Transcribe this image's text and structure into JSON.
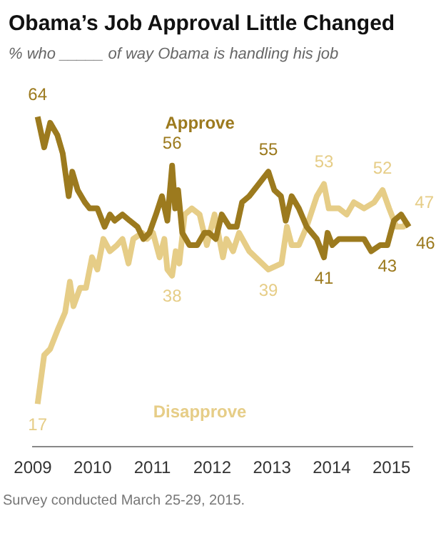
{
  "chart_data": {
    "type": "line",
    "title": "Obama’s Job Approval Little Changed",
    "subtitle": "% who _____ of way Obama is handling his job",
    "xlim": [
      2009,
      2015.35
    ],
    "xticks": [
      2009,
      2010,
      2011,
      2012,
      2013,
      2014,
      2015
    ],
    "tick_labels": "x",
    "grid": false,
    "legend": false,
    "marker": "none",
    "annotations": [
      "Survey conducted March 25-29, 2015."
    ],
    "series": [
      {
        "name": "Approve",
        "color": "#9c7a1e",
        "x": [
          2009.08,
          2009.19,
          2009.29,
          2009.41,
          2009.5,
          2009.6,
          2009.66,
          2009.75,
          2009.87,
          2009.95,
          2010.08,
          2010.2,
          2010.29,
          2010.37,
          2010.5,
          2010.62,
          2010.75,
          2010.85,
          2010.95,
          2011.06,
          2011.16,
          2011.25,
          2011.33,
          2011.38,
          2011.43,
          2011.5,
          2011.62,
          2011.75,
          2011.87,
          2011.95,
          2012.06,
          2012.16,
          2012.29,
          2012.41,
          2012.5,
          2012.62,
          2012.94,
          2013.04,
          2013.15,
          2013.23,
          2013.33,
          2013.45,
          2013.58,
          2013.75,
          2013.87,
          2013.93,
          2014.01,
          2014.12,
          2014.54,
          2014.66,
          2014.81,
          2014.93,
          2015.04,
          2015.16,
          2015.29
        ],
        "values": [
          64,
          59,
          63,
          61,
          58,
          51,
          55,
          52,
          50,
          49,
          49,
          46,
          48,
          47,
          48,
          47,
          46,
          44,
          45,
          48,
          51,
          47,
          56,
          49,
          52,
          45,
          43,
          43,
          45,
          45,
          44,
          48,
          46,
          46,
          50,
          51,
          55,
          52,
          51,
          47,
          51,
          49,
          46,
          44,
          41,
          45,
          43,
          44,
          44,
          42,
          43,
          43,
          47,
          48,
          46
        ],
        "value_labels": [
          "64",
          null,
          null,
          null,
          null,
          null,
          null,
          null,
          null,
          null,
          null,
          null,
          null,
          null,
          null,
          null,
          null,
          null,
          null,
          null,
          null,
          null,
          "56",
          null,
          null,
          null,
          null,
          null,
          null,
          null,
          null,
          null,
          null,
          null,
          null,
          null,
          "55",
          null,
          null,
          null,
          null,
          null,
          null,
          null,
          "41",
          null,
          null,
          null,
          null,
          null,
          null,
          "43",
          null,
          null,
          "46"
        ]
      },
      {
        "name": "Disapprove",
        "color": "#e6cd87",
        "x": [
          2009.08,
          2009.19,
          2009.29,
          2009.41,
          2009.54,
          2009.62,
          2009.68,
          2009.79,
          2009.89,
          2009.99,
          2010.08,
          2010.18,
          2010.29,
          2010.41,
          2010.5,
          2010.6,
          2010.68,
          2010.83,
          2010.91,
          2011.01,
          2011.12,
          2011.2,
          2011.25,
          2011.33,
          2011.39,
          2011.45,
          2011.54,
          2011.66,
          2011.79,
          2011.91,
          2012.04,
          2012.18,
          2012.24,
          2012.35,
          2012.45,
          2012.62,
          2012.94,
          2013.16,
          2013.25,
          2013.33,
          2013.45,
          2013.58,
          2013.75,
          2013.87,
          2013.95,
          2014.12,
          2014.25,
          2014.37,
          2014.54,
          2014.71,
          2014.85,
          2014.96,
          2015.08,
          2015.2,
          2015.27
        ],
        "values": [
          17,
          25,
          26,
          29,
          32,
          37,
          33,
          36,
          36,
          41,
          39,
          44,
          42,
          43,
          44,
          40,
          44,
          45,
          44,
          45,
          41,
          44,
          39,
          38,
          42,
          40,
          48,
          49,
          48,
          43,
          48,
          41,
          44,
          42,
          45,
          42,
          39,
          40,
          46,
          43,
          43,
          46,
          51,
          53,
          49,
          49,
          48,
          50,
          49,
          50,
          52,
          49,
          46,
          46,
          47
        ],
        "value_labels": [
          "17",
          null,
          null,
          null,
          null,
          null,
          null,
          null,
          null,
          null,
          null,
          null,
          null,
          null,
          null,
          null,
          null,
          null,
          null,
          null,
          null,
          null,
          null,
          "38",
          null,
          null,
          null,
          null,
          null,
          null,
          null,
          null,
          null,
          null,
          null,
          null,
          "39",
          null,
          null,
          null,
          null,
          null,
          null,
          "53",
          null,
          null,
          null,
          null,
          null,
          null,
          "52",
          null,
          null,
          null,
          "47"
        ]
      }
    ]
  }
}
